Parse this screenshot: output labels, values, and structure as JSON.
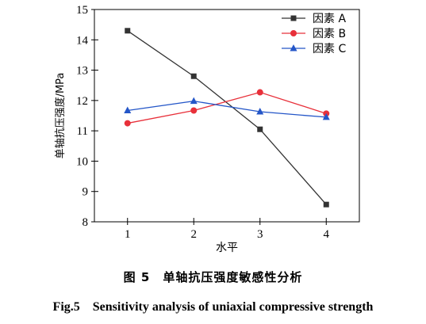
{
  "chart_data": {
    "type": "line",
    "xlabel": "水平",
    "ylabel": "单轴抗压强度/MPa",
    "categories": [
      1,
      2,
      3,
      4
    ],
    "x_ticks": [
      "1",
      "2",
      "3",
      "4"
    ],
    "y_ticks": [
      "8",
      "9",
      "10",
      "11",
      "12",
      "13",
      "14",
      "15"
    ],
    "xlim": [
      0.5,
      4.5
    ],
    "ylim": [
      8,
      15
    ],
    "grid": false,
    "legend_position": "top-right",
    "series": [
      {
        "name": "因素 A",
        "values": [
          14.3,
          12.8,
          11.05,
          8.57
        ],
        "color": "#333333",
        "marker": "square"
      },
      {
        "name": "因素 B",
        "values": [
          11.25,
          11.67,
          12.27,
          11.57
        ],
        "color": "#e8303a",
        "marker": "circle"
      },
      {
        "name": "因素 C",
        "values": [
          11.67,
          11.98,
          11.63,
          11.45
        ],
        "color": "#2456c8",
        "marker": "triangle"
      }
    ]
  },
  "caption_cn": "图 5　单轴抗压强度敏感性分析",
  "caption_en": "Fig.5　Sensitivity analysis of uniaxial compressive strength"
}
